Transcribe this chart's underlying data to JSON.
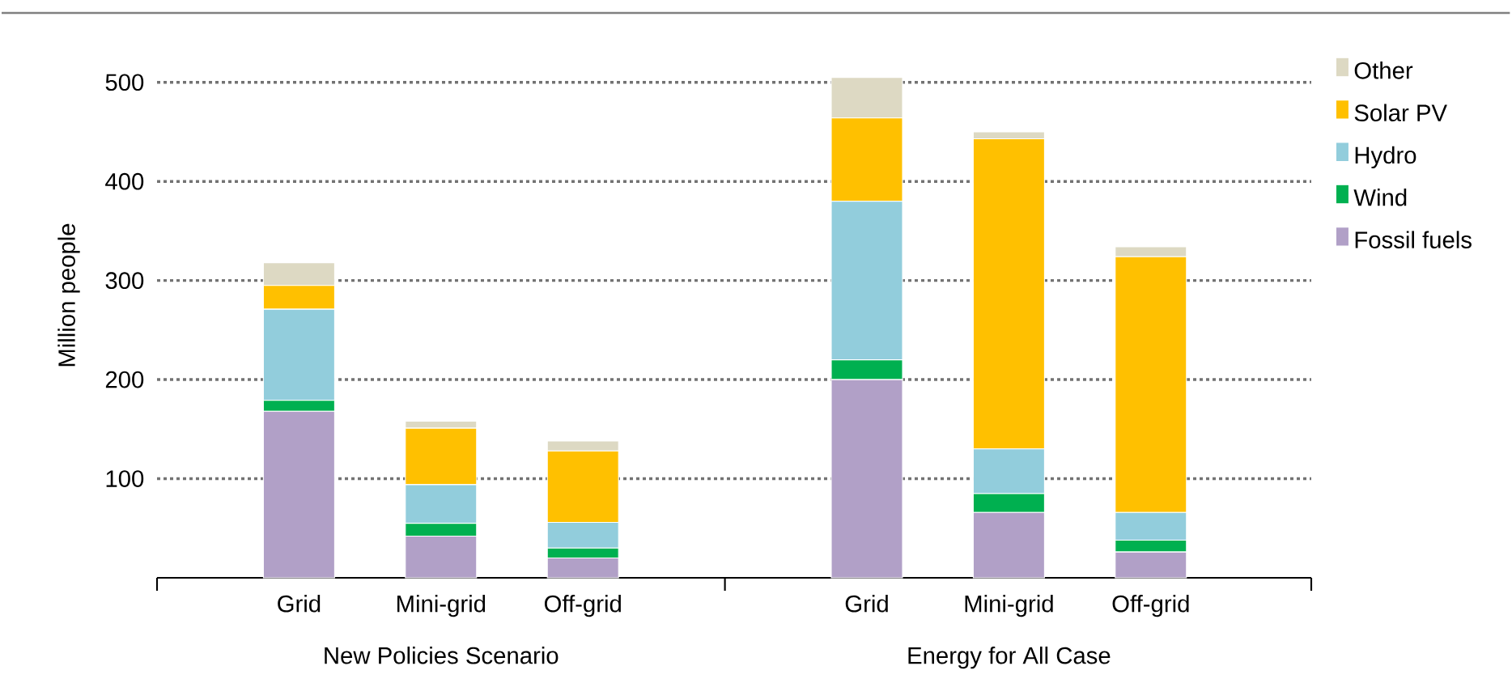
{
  "chart_data": {
    "type": "bar",
    "stacked": true,
    "ylabel": "Million people",
    "categories": [
      "Grid",
      "Mini-grid",
      "Off-grid",
      "Grid",
      "Mini-grid",
      "Off-grid"
    ],
    "annotations": [
      "New Policies Scenario",
      "Energy for All  Case"
    ],
    "series": [
      {
        "name": "Fossil fuels",
        "color": "#b1a0c7",
        "values": [
          168,
          42,
          20,
          200,
          66,
          26
        ]
      },
      {
        "name": "Wind",
        "color": "#00b050",
        "values": [
          11,
          13,
          10,
          20,
          19,
          12
        ]
      },
      {
        "name": "Hydro",
        "color": "#92cddc",
        "values": [
          92,
          39,
          26,
          160,
          45,
          28
        ]
      },
      {
        "name": "Solar PV",
        "color": "#ffc000",
        "values": [
          24,
          57,
          72,
          84,
          313,
          258
        ]
      },
      {
        "name": "Other",
        "color": "#ddd9c3",
        "values": [
          23,
          7,
          10,
          41,
          7,
          10
        ]
      }
    ],
    "ylim": [
      0,
      570
    ],
    "yticks": [
      100,
      200,
      300,
      400,
      500
    ],
    "grid": "y",
    "legend": "right"
  }
}
